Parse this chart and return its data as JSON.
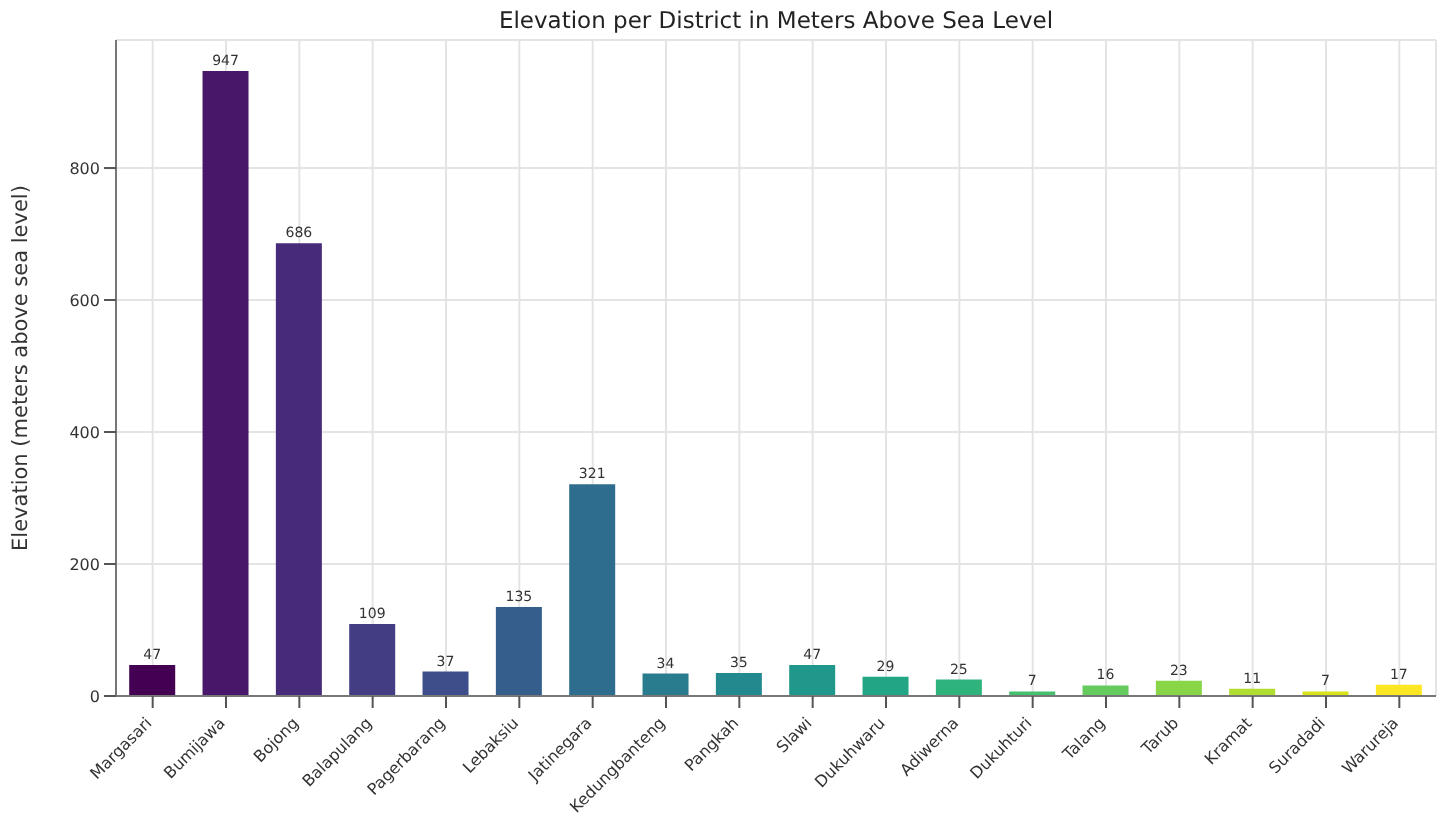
{
  "chart_data": {
    "type": "bar",
    "title": "Elevation per District in Meters Above Sea Level",
    "ylabel": "Elevation (meters above sea level)",
    "categories": [
      "Margasari",
      "Bumijawa",
      "Bojong",
      "Balapulang",
      "Pagerbarang",
      "Lebaksiu",
      "Jatinegara",
      "Kedungbanteng",
      "Pangkah",
      "Slawi",
      "Dukuhwaru",
      "Adiwerna",
      "Dukuhturi",
      "Talang",
      "Tarub",
      "Kramat",
      "Suradadi",
      "Warureja"
    ],
    "values": [
      47,
      947,
      686,
      109,
      37,
      135,
      321,
      34,
      35,
      47,
      29,
      25,
      7,
      16,
      23,
      11,
      7,
      17
    ],
    "colors": [
      "#440154",
      "#481769",
      "#472a7a",
      "#433d84",
      "#3d4e8a",
      "#355e8d",
      "#2e6d8e",
      "#297b8e",
      "#23898e",
      "#1f978b",
      "#21a585",
      "#2eb37c",
      "#46c06f",
      "#65cb5e",
      "#89d548",
      "#b0dd2f",
      "#d8e219",
      "#fde725"
    ],
    "ylim": [
      0,
      994
    ],
    "yticks": [
      0,
      200,
      400,
      600,
      800
    ],
    "grid": true,
    "data_labels": true
  }
}
